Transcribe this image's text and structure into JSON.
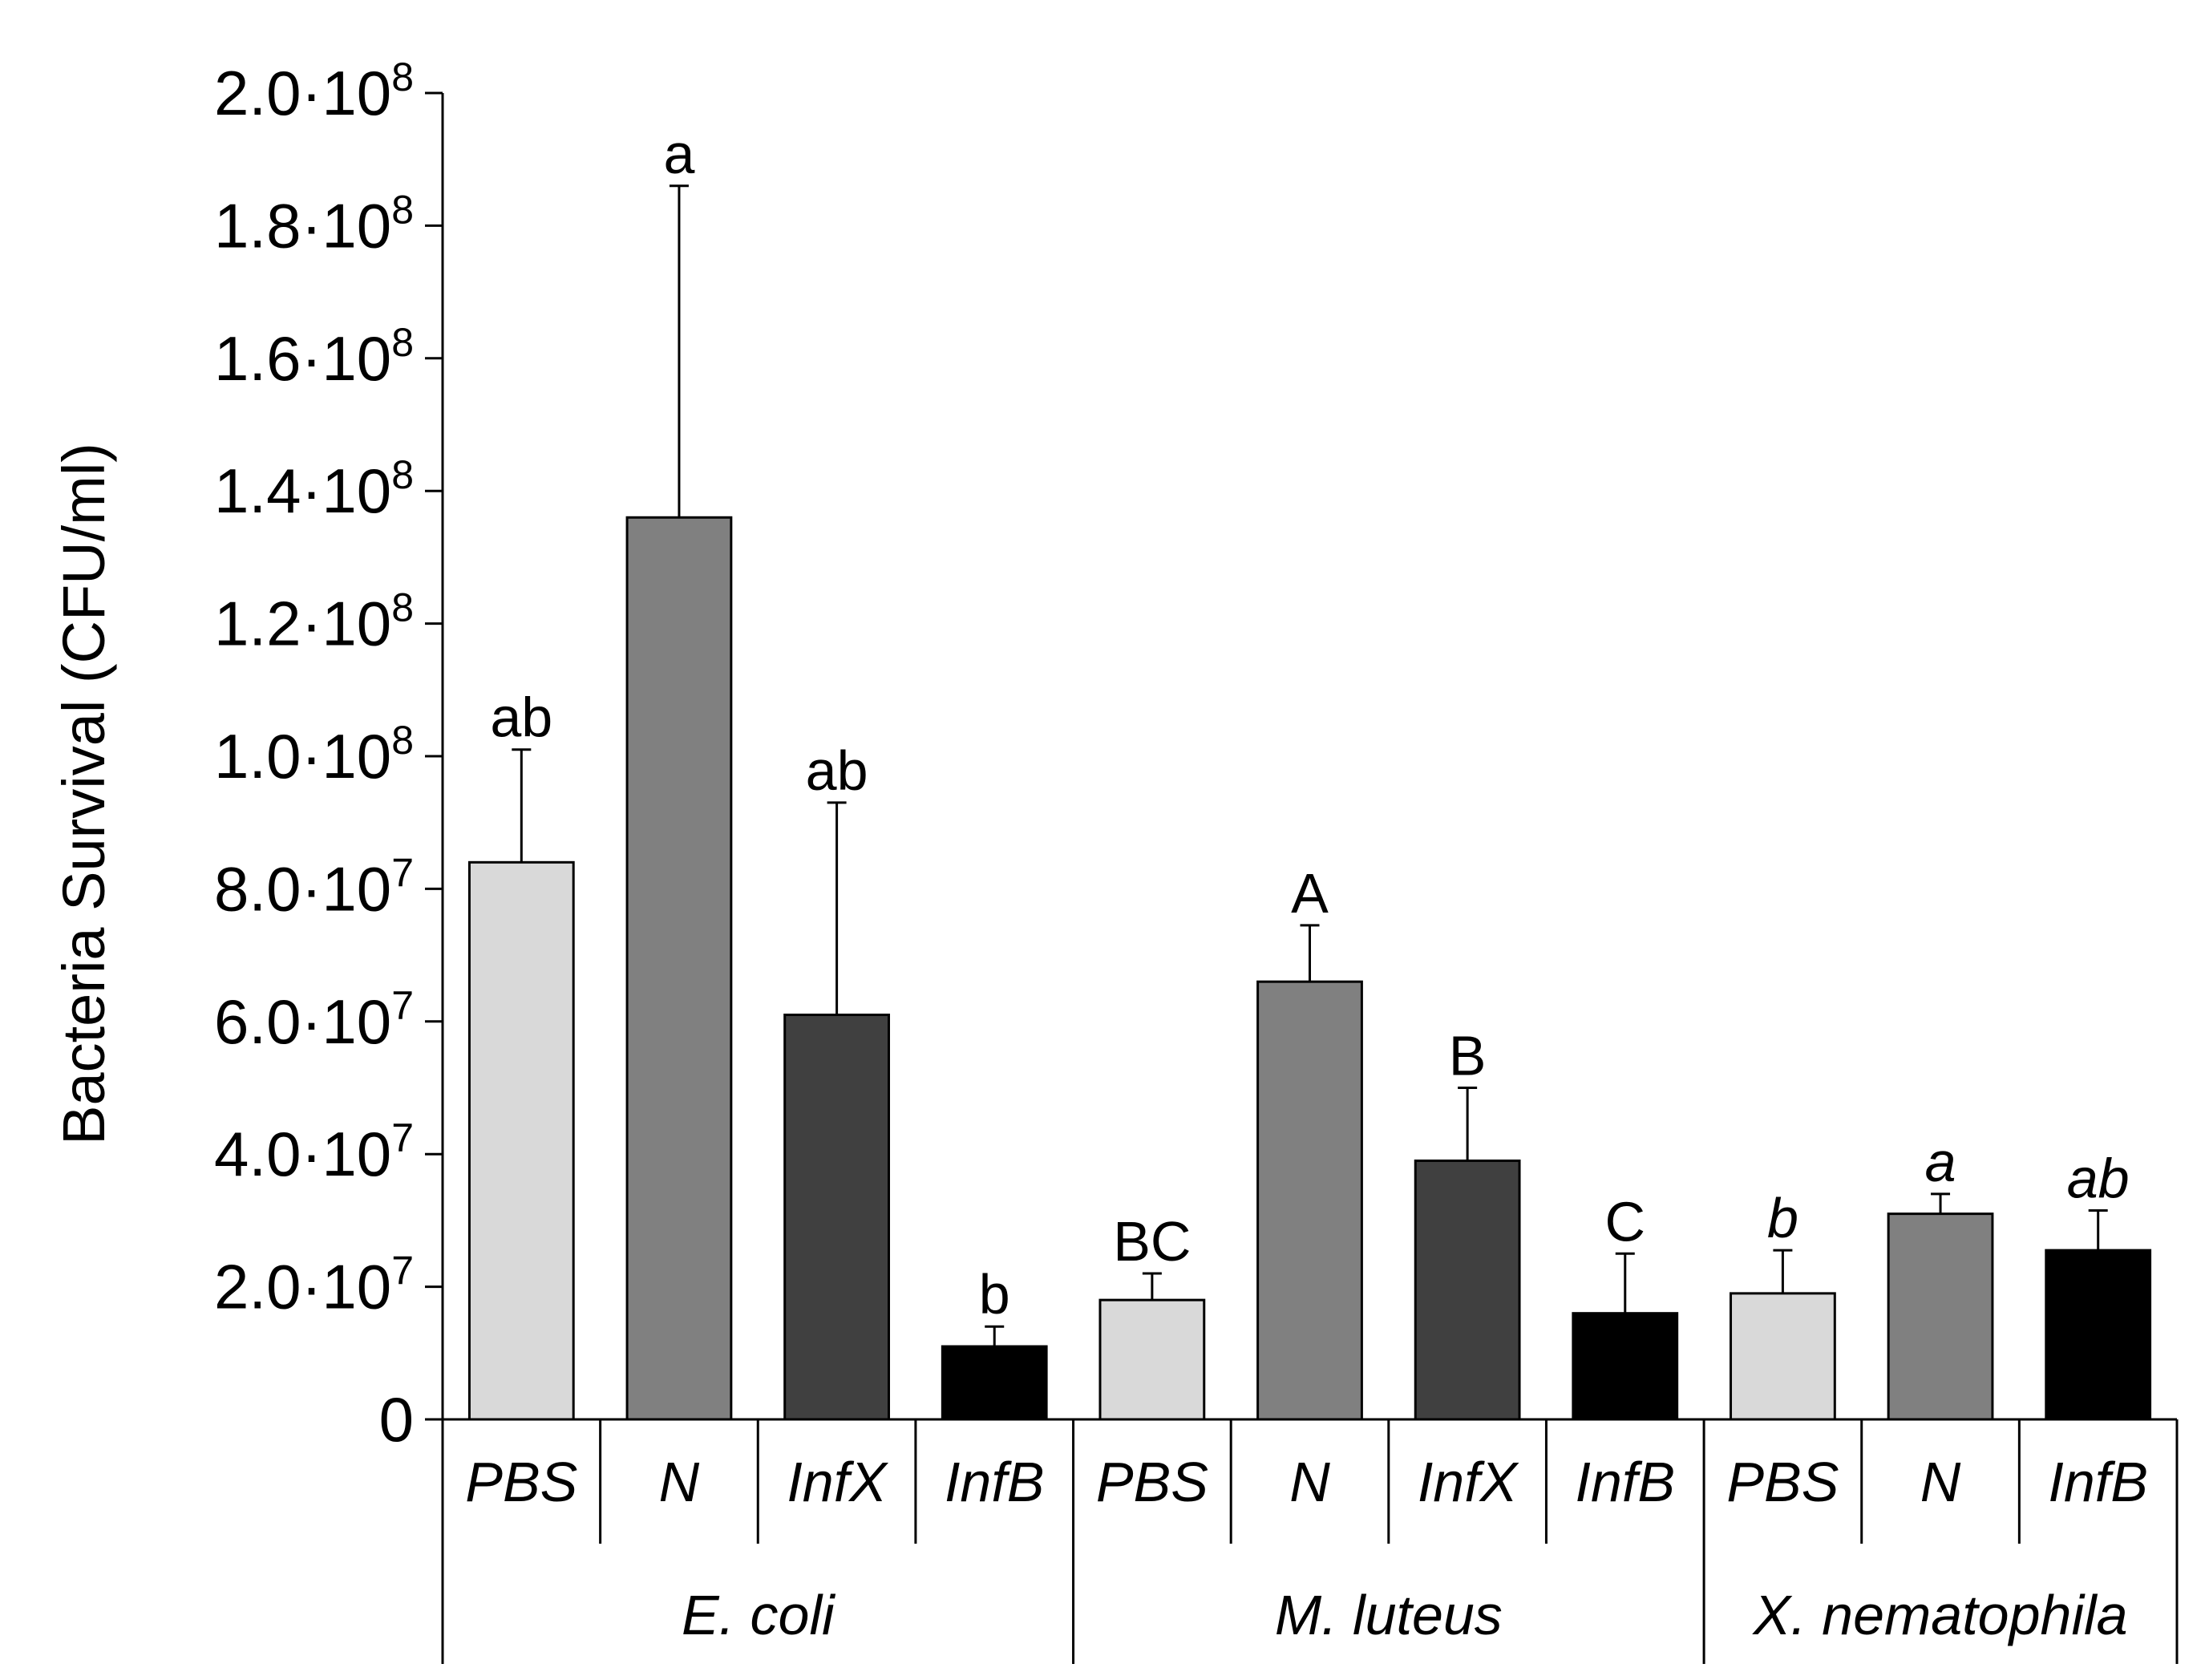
{
  "chart_data": {
    "type": "bar",
    "title": "",
    "xlabel": "",
    "ylabel": "Bacteria Survival (CFU/ml)",
    "ylim": [
      0,
      200000000
    ],
    "yticks": [
      {
        "value": 0,
        "mantissa": "0",
        "exponent": ""
      },
      {
        "value": 20000000,
        "mantissa": "2.0·10",
        "exponent": "7"
      },
      {
        "value": 40000000,
        "mantissa": "4.0·10",
        "exponent": "7"
      },
      {
        "value": 60000000,
        "mantissa": "6.0·10",
        "exponent": "7"
      },
      {
        "value": 80000000,
        "mantissa": "8.0·10",
        "exponent": "7"
      },
      {
        "value": 100000000,
        "mantissa": "1.0·10",
        "exponent": "8"
      },
      {
        "value": 120000000,
        "mantissa": "1.2·10",
        "exponent": "8"
      },
      {
        "value": 140000000,
        "mantissa": "1.4·10",
        "exponent": "8"
      },
      {
        "value": 160000000,
        "mantissa": "1.6·10",
        "exponent": "8"
      },
      {
        "value": 180000000,
        "mantissa": "1.8·10",
        "exponent": "8"
      },
      {
        "value": 200000000,
        "mantissa": "2.0·10",
        "exponent": "8"
      }
    ],
    "grid": false,
    "groups": [
      {
        "name": "E. coli",
        "bars": [
          {
            "label": "PBS",
            "value": 84000000,
            "error": 17000000,
            "sig": "ab",
            "sig_italic": false,
            "color": "#d9d9d9"
          },
          {
            "label": "N",
            "value": 136000000,
            "error": 50000000,
            "sig": "a",
            "sig_italic": false,
            "color": "#808080"
          },
          {
            "label": "InfX",
            "value": 61000000,
            "error": 32000000,
            "sig": "ab",
            "sig_italic": false,
            "color": "#404040"
          },
          {
            "label": "InfB",
            "value": 11000000,
            "error": 3000000,
            "sig": "b",
            "sig_italic": false,
            "color": "#000000"
          }
        ]
      },
      {
        "name": "M. luteus",
        "bars": [
          {
            "label": "PBS",
            "value": 18000000,
            "error": 4000000,
            "sig": "BC",
            "sig_italic": false,
            "color": "#d9d9d9"
          },
          {
            "label": "N",
            "value": 66000000,
            "error": 8500000,
            "sig": "A",
            "sig_italic": false,
            "color": "#808080"
          },
          {
            "label": "InfX",
            "value": 39000000,
            "error": 11000000,
            "sig": "B",
            "sig_italic": false,
            "color": "#404040"
          },
          {
            "label": "InfB",
            "value": 16000000,
            "error": 9000000,
            "sig": "C",
            "sig_italic": false,
            "color": "#000000"
          }
        ]
      },
      {
        "name": "X. nematophila",
        "bars": [
          {
            "label": "PBS",
            "value": 19000000,
            "error": 6500000,
            "sig": "b",
            "sig_italic": true,
            "color": "#d9d9d9"
          },
          {
            "label": "N",
            "value": 31000000,
            "error": 3000000,
            "sig": "a",
            "sig_italic": true,
            "color": "#808080"
          },
          {
            "label": "InfB",
            "value": 25500000,
            "error": 6000000,
            "sig": "ab",
            "sig_italic": true,
            "color": "#000000"
          }
        ]
      }
    ]
  }
}
